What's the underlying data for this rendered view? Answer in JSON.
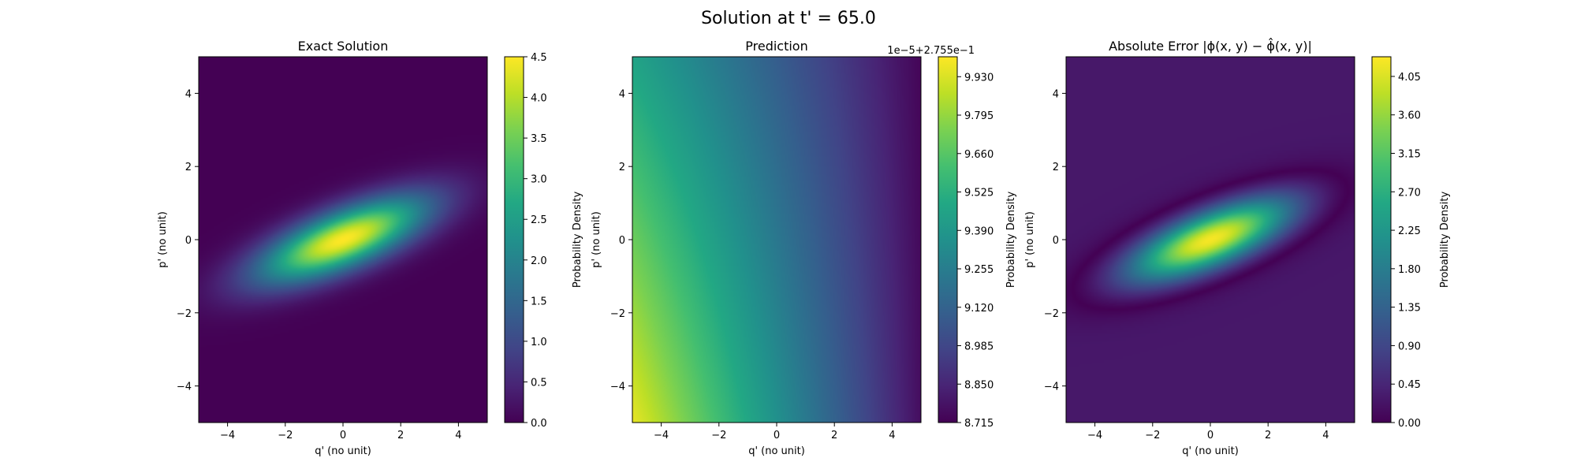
{
  "figure": {
    "suptitle": "Solution at t' = 65.0"
  },
  "chart_data": [
    {
      "type": "heatmap",
      "title": "Exact Solution",
      "xlabel": "q' (no unit)",
      "ylabel": "p' (no unit)",
      "xlim": [
        -5,
        5
      ],
      "ylim": [
        -5,
        5
      ],
      "xticks": [
        -4,
        -2,
        0,
        2,
        4
      ],
      "yticks": [
        -4,
        -2,
        0,
        2,
        4
      ],
      "xtick_labels": [
        "−4",
        "−2",
        "0",
        "2",
        "4"
      ],
      "ytick_labels": [
        "−4",
        "−2",
        "0",
        "2",
        "4"
      ],
      "colormap": "viridis",
      "field": {
        "kind": "rotated-gaussian",
        "peak": 4.5,
        "center": [
          0,
          0
        ],
        "angle_deg": 17,
        "sigma_major": 2.1,
        "sigma_minor": 0.55,
        "floor": 0,
        "ring_depth": 0
      },
      "colorbar": {
        "label": "Probability Density",
        "vmin": 0.0,
        "vmax": 4.5,
        "ticks": [
          0.0,
          0.5,
          1.0,
          1.5,
          2.0,
          2.5,
          3.0,
          3.5,
          4.0,
          4.5
        ],
        "tick_labels": [
          "0.0",
          "0.5",
          "1.0",
          "1.5",
          "2.0",
          "2.5",
          "3.0",
          "3.5",
          "4.0",
          "4.5"
        ],
        "offset_text": ""
      },
      "grid": false
    },
    {
      "type": "heatmap",
      "title": "Prediction",
      "xlabel": "q' (no unit)",
      "ylabel": "p' (no unit)",
      "xlim": [
        -5,
        5
      ],
      "ylim": [
        -5,
        5
      ],
      "xticks": [
        -4,
        -2,
        0,
        2,
        4
      ],
      "yticks": [
        -4,
        -2,
        0,
        2,
        4
      ],
      "xtick_labels": [
        "−4",
        "−2",
        "0",
        "2",
        "4"
      ],
      "ytick_labels": [
        "−4",
        "−2",
        "0",
        "2",
        "4"
      ],
      "colormap": "viridis",
      "field": {
        "kind": "linear-gradient",
        "value_at": [
          {
            "q": -5,
            "p": -5,
            "v": 9.96
          },
          {
            "q": -5,
            "p": 5,
            "v": 9.46
          },
          {
            "q": 5,
            "p": -5,
            "v": 8.76
          },
          {
            "q": 5,
            "p": 5,
            "v": 8.73
          }
        ]
      },
      "colorbar": {
        "label": "Probability Density",
        "vmin": 8.715,
        "vmax": 10.0,
        "ticks": [
          8.715,
          8.85,
          8.985,
          9.12,
          9.255,
          9.39,
          9.525,
          9.66,
          9.795,
          9.93
        ],
        "tick_labels": [
          "8.715",
          "8.850",
          "8.985",
          "9.120",
          "9.255",
          "9.390",
          "9.525",
          "9.660",
          "9.795",
          "9.930"
        ],
        "offset_text": "1e−5+2.755e−1"
      },
      "grid": false
    },
    {
      "type": "heatmap",
      "title": "Absolute Error |ϕ(x, y) − ϕ̂(x, y)|",
      "xlabel": "q' (no unit)",
      "ylabel": "p' (no unit)",
      "xlim": [
        -5,
        5
      ],
      "ylim": [
        -5,
        5
      ],
      "xticks": [
        -4,
        -2,
        0,
        2,
        4
      ],
      "yticks": [
        -4,
        -2,
        0,
        2,
        4
      ],
      "xtick_labels": [
        "−4",
        "−2",
        "0",
        "2",
        "4"
      ],
      "ytick_labels": [
        "−4",
        "−2",
        "0",
        "2",
        "4"
      ],
      "colormap": "viridis",
      "field": {
        "kind": "rotated-gaussian",
        "peak": 4.23,
        "center": [
          0,
          0
        ],
        "angle_deg": 17,
        "sigma_major": 2.1,
        "sigma_minor": 0.55,
        "floor": 0.2755,
        "ring_depth": 0.2755
      },
      "colorbar": {
        "label": "Probability Density",
        "vmin": 0.0,
        "vmax": 4.28,
        "ticks": [
          0.0,
          0.45,
          0.9,
          1.35,
          1.8,
          2.25,
          2.7,
          3.15,
          3.6,
          4.05
        ],
        "tick_labels": [
          "0.00",
          "0.45",
          "0.90",
          "1.35",
          "1.80",
          "2.25",
          "2.70",
          "3.15",
          "3.60",
          "4.05"
        ],
        "offset_text": ""
      },
      "grid": false
    }
  ]
}
